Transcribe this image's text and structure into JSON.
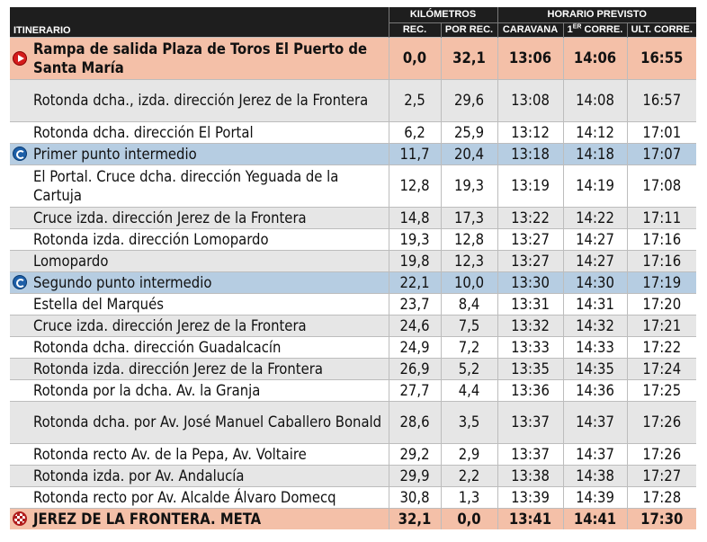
{
  "header": {
    "itinerario": "ITINERARIO",
    "kilometros": "KILÓMETROS",
    "horario": "HORARIO PREVISTO",
    "rec": "REC.",
    "por_rec": "POR REC.",
    "caravana": "CARAVANA",
    "primer_corre_num": "1",
    "primer_corre_sup": "ER",
    "primer_corre_suffix": " CORRE.",
    "ult_corre": "ULT. CORRE."
  },
  "rows": [
    {
      "name": "Rampa de salida Plaza de Toros El Puerto de Santa María",
      "rec": "0,0",
      "por_rec": "32,1",
      "caravana": "13:06",
      "primer": "14:06",
      "ult": "16:55"
    },
    {
      "name": "Rotonda dcha., izda. dirección Jerez de la Frontera",
      "rec": "2,5",
      "por_rec": "29,6",
      "caravana": "13:08",
      "primer": "14:08",
      "ult": "16:57"
    },
    {
      "name": "Rotonda dcha. dirección El Portal",
      "rec": "6,2",
      "por_rec": "25,9",
      "caravana": "13:12",
      "primer": "14:12",
      "ult": "17:01"
    },
    {
      "name": "Primer punto intermedio",
      "rec": "11,7",
      "por_rec": "20,4",
      "caravana": "13:18",
      "primer": "14:18",
      "ult": "17:07"
    },
    {
      "name": "El Portal. Cruce dcha. dirección Yeguada de la Cartuja",
      "rec": "12,8",
      "por_rec": "19,3",
      "caravana": "13:19",
      "primer": "14:19",
      "ult": "17:08"
    },
    {
      "name": "Cruce izda. dirección Jerez de la Frontera",
      "rec": "14,8",
      "por_rec": "17,3",
      "caravana": "13:22",
      "primer": "14:22",
      "ult": "17:11"
    },
    {
      "name": "Rotonda izda. dirección Lomopardo",
      "rec": "19,3",
      "por_rec": "12,8",
      "caravana": "13:27",
      "primer": "14:27",
      "ult": "17:16"
    },
    {
      "name": "Lomopardo",
      "rec": "19,8",
      "por_rec": "12,3",
      "caravana": "13:27",
      "primer": "14:27",
      "ult": "17:16"
    },
    {
      "name": "Segundo punto intermedio",
      "rec": "22,1",
      "por_rec": "10,0",
      "caravana": "13:30",
      "primer": "14:30",
      "ult": "17:19"
    },
    {
      "name": "Estella del Marqués",
      "rec": "23,7",
      "por_rec": "8,4",
      "caravana": "13:31",
      "primer": "14:31",
      "ult": "17:20"
    },
    {
      "name": "Cruce izda. dirección Jerez de la Frontera",
      "rec": "24,6",
      "por_rec": "7,5",
      "caravana": "13:32",
      "primer": "14:32",
      "ult": "17:21"
    },
    {
      "name": "Rotonda dcha. dirección Guadalcacín",
      "rec": "24,9",
      "por_rec": "7,2",
      "caravana": "13:33",
      "primer": "14:33",
      "ult": "17:22"
    },
    {
      "name": "Rotonda izda. dirección Jerez de la Frontera",
      "rec": "26,9",
      "por_rec": "5,2",
      "caravana": "13:35",
      "primer": "14:35",
      "ult": "17:24"
    },
    {
      "name": "Rotonda por la dcha. Av. la Granja",
      "rec": "27,7",
      "por_rec": "4,4",
      "caravana": "13:36",
      "primer": "14:36",
      "ult": "17:25"
    },
    {
      "name": "Rotonda dcha. por Av. José Manuel Caballero Bonald",
      "rec": "28,6",
      "por_rec": "3,5",
      "caravana": "13:37",
      "primer": "14:37",
      "ult": "17:26"
    },
    {
      "name": "Rotonda recto Av. de la Pepa, Av. Voltaire",
      "rec": "29,2",
      "por_rec": "2,9",
      "caravana": "13:37",
      "primer": "14:37",
      "ult": "17:26"
    },
    {
      "name": "Rotonda izda. por Av. Andalucía",
      "rec": "29,9",
      "por_rec": "2,2",
      "caravana": "13:38",
      "primer": "14:38",
      "ult": "17:27"
    },
    {
      "name": "Rotonda recto por Av. Alcalde Álvaro Domecq",
      "rec": "30,8",
      "por_rec": "1,3",
      "caravana": "13:39",
      "primer": "14:39",
      "ult": "17:28"
    },
    {
      "name": "JEREZ DE LA FRONTERA. META",
      "rec": "32,1",
      "por_rec": "0,0",
      "caravana": "13:41",
      "primer": "14:41",
      "ult": "17:30"
    }
  ],
  "colors": {
    "header_bg": "#1e1e1e",
    "row_white": "#ffffff",
    "row_gray": "#e6e6e6",
    "row_blue": "#b6cde2",
    "row_orange": "#f4c0a8",
    "start_icon": "#d41c1c",
    "intermediate_icon": "#1d5fa8"
  },
  "icons": {
    "start": "play-circle-icon",
    "intermediate": "stopwatch-icon",
    "finish": "checkered-flag-icon"
  }
}
